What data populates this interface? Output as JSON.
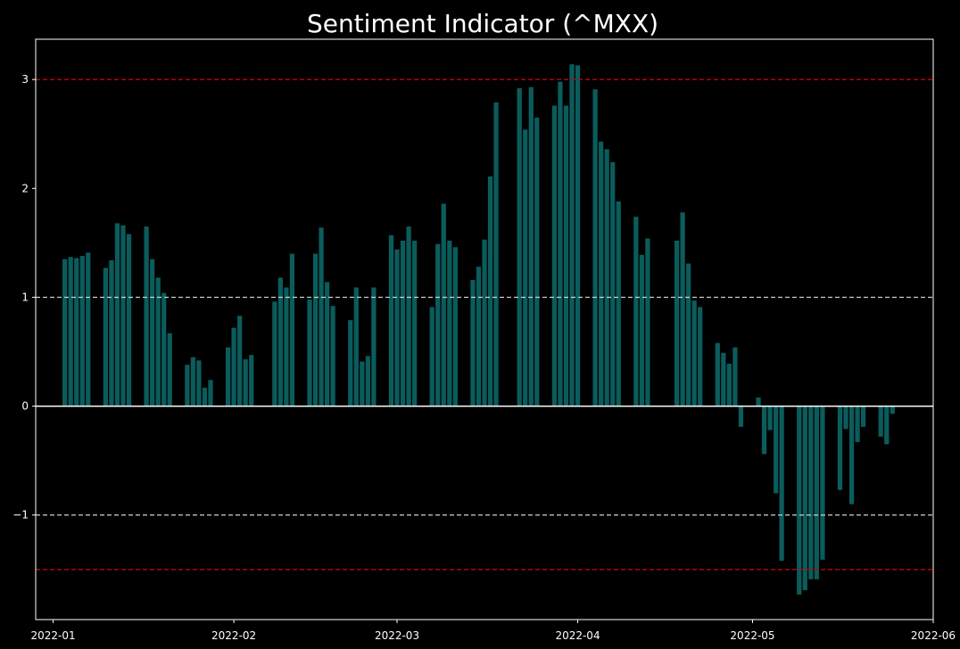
{
  "chart_data": {
    "type": "bar",
    "title": "Sentiment Indicator (^MXX)",
    "xlabel": "",
    "ylabel": "",
    "x_range": [
      "2021-12-29",
      "2022-06-01"
    ],
    "y_range": [
      -1.96,
      3.37
    ],
    "y_ticks": [
      -1,
      0,
      1,
      2,
      3
    ],
    "x_ticks": [
      "2022-01",
      "2022-02",
      "2022-03",
      "2022-04",
      "2022-05",
      "2022-06"
    ],
    "reference_lines": [
      {
        "value": 3,
        "color": "#cc0000",
        "style": "dashed"
      },
      {
        "value": 1,
        "color": "#d0d0d0",
        "style": "dashed"
      },
      {
        "value": 0,
        "color": "#ffffff",
        "style": "solid"
      },
      {
        "value": -1,
        "color": "#d0d0d0",
        "style": "dashed"
      },
      {
        "value": -1.5,
        "color": "#cc0000",
        "style": "dashed"
      }
    ],
    "bar_color": "#0b5c5c",
    "grid": false,
    "series": [
      {
        "x": [
          "2022-01-03",
          "2022-01-04",
          "2022-01-05",
          "2022-01-06",
          "2022-01-07",
          "2022-01-10",
          "2022-01-11",
          "2022-01-12",
          "2022-01-13",
          "2022-01-14",
          "2022-01-17",
          "2022-01-18",
          "2022-01-19",
          "2022-01-20",
          "2022-01-21",
          "2022-01-24",
          "2022-01-25",
          "2022-01-26",
          "2022-01-27",
          "2022-01-28",
          "2022-01-31",
          "2022-02-01",
          "2022-02-02",
          "2022-02-03",
          "2022-02-04",
          "2022-02-08",
          "2022-02-09",
          "2022-02-10",
          "2022-02-11",
          "2022-02-14",
          "2022-02-15",
          "2022-02-16",
          "2022-02-17",
          "2022-02-18",
          "2022-02-21",
          "2022-02-22",
          "2022-02-23",
          "2022-02-24",
          "2022-02-25",
          "2022-02-28",
          "2022-03-01",
          "2022-03-02",
          "2022-03-03",
          "2022-03-04",
          "2022-03-07",
          "2022-03-08",
          "2022-03-09",
          "2022-03-10",
          "2022-03-11",
          "2022-03-14",
          "2022-03-15",
          "2022-03-16",
          "2022-03-17",
          "2022-03-18",
          "2022-03-22",
          "2022-03-23",
          "2022-03-24",
          "2022-03-25",
          "2022-03-28",
          "2022-03-29",
          "2022-03-30",
          "2022-03-31",
          "2022-04-01",
          "2022-04-04",
          "2022-04-05",
          "2022-04-06",
          "2022-04-07",
          "2022-04-08",
          "2022-04-11",
          "2022-04-12",
          "2022-04-13",
          "2022-04-18",
          "2022-04-19",
          "2022-04-20",
          "2022-04-21",
          "2022-04-22",
          "2022-04-25",
          "2022-04-26",
          "2022-04-27",
          "2022-04-28",
          "2022-04-29",
          "2022-05-02",
          "2022-05-03",
          "2022-05-04",
          "2022-05-05",
          "2022-05-06",
          "2022-05-09",
          "2022-05-10",
          "2022-05-11",
          "2022-05-12",
          "2022-05-13",
          "2022-05-16",
          "2022-05-17",
          "2022-05-18",
          "2022-05-19",
          "2022-05-20",
          "2022-05-23",
          "2022-05-24",
          "2022-05-25"
        ],
        "values": [
          1.35,
          1.37,
          1.36,
          1.38,
          1.41,
          1.27,
          1.34,
          1.68,
          1.66,
          1.58,
          1.65,
          1.35,
          1.18,
          1.04,
          0.67,
          0.38,
          0.45,
          0.42,
          0.17,
          0.24,
          0.54,
          0.72,
          0.83,
          0.43,
          0.47,
          0.96,
          1.18,
          1.09,
          1.4,
          0.98,
          1.4,
          1.64,
          1.14,
          0.92,
          0.79,
          1.09,
          0.41,
          0.46,
          1.09,
          1.57,
          1.44,
          1.52,
          1.65,
          1.52,
          0.91,
          1.49,
          1.86,
          1.52,
          1.46,
          1.16,
          1.28,
          1.53,
          2.11,
          2.79,
          2.92,
          2.54,
          2.93,
          2.65,
          2.76,
          2.98,
          2.76,
          3.14,
          3.13,
          2.91,
          2.43,
          2.36,
          2.24,
          1.88,
          1.74,
          1.39,
          1.54,
          1.52,
          1.78,
          1.31,
          0.97,
          0.91,
          0.58,
          0.49,
          0.39,
          0.54,
          -0.19,
          0.08,
          -0.44,
          -0.22,
          -0.8,
          -1.42,
          -1.73,
          -1.69,
          -1.59,
          -1.59,
          -1.41,
          -0.77,
          -0.21,
          -0.9,
          -0.33,
          -0.19,
          -0.28,
          -0.35,
          -0.07
        ]
      }
    ]
  }
}
